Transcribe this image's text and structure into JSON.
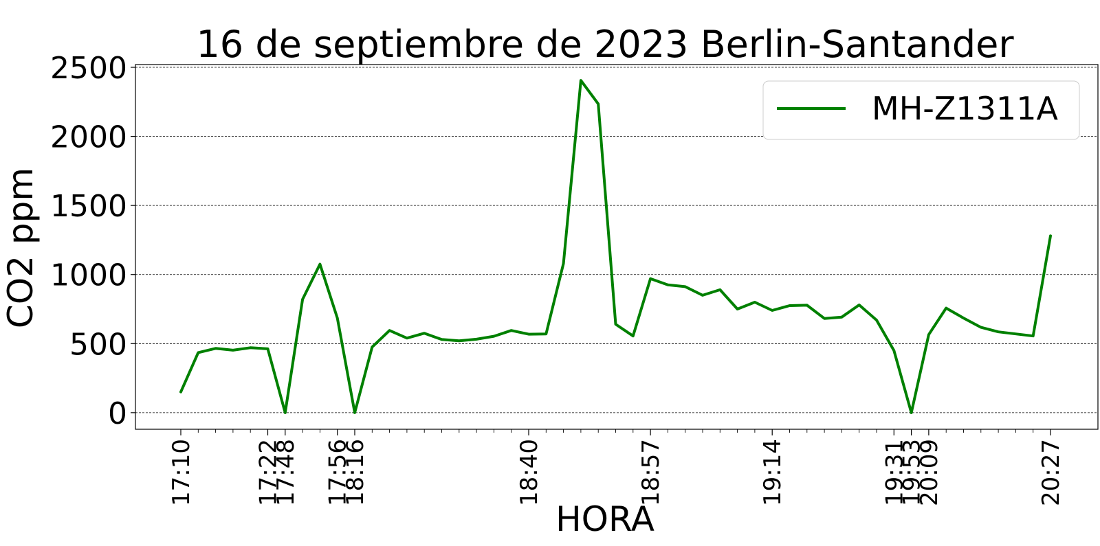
{
  "chart_data": {
    "type": "line",
    "title": "16 de septiembre de 2023 Berlin-Santander",
    "xlabel": "HORA",
    "ylabel": "CO2 ppm",
    "ylim": [
      -120,
      2520
    ],
    "yticks": [
      0,
      500,
      1000,
      1500,
      2000,
      2500
    ],
    "grid": "horizontal dashed",
    "legend_position": "top-right",
    "series": [
      {
        "name": "MH-Z1311A",
        "color": "#008000",
        "values": [
          150,
          435,
          465,
          452,
          470,
          462,
          0,
          820,
          1075,
          685,
          0,
          475,
          595,
          540,
          575,
          530,
          520,
          532,
          553,
          595,
          568,
          570,
          1080,
          2405,
          2235,
          640,
          555,
          970,
          925,
          912,
          850,
          890,
          750,
          800,
          740,
          775,
          778,
          682,
          692,
          780,
          670,
          450,
          0,
          565,
          757,
          685,
          618,
          585,
          570,
          555,
          1280
        ]
      }
    ],
    "xticks_labeled": [
      {
        "index": 0,
        "label": "17:10"
      },
      {
        "index": 5,
        "label": "17:22"
      },
      {
        "index": 6,
        "label": "17:48"
      },
      {
        "index": 9,
        "label": "17:56"
      },
      {
        "index": 10,
        "label": "18:16"
      },
      {
        "index": 20,
        "label": "18:40"
      },
      {
        "index": 27,
        "label": "18:57"
      },
      {
        "index": 34,
        "label": "19:14"
      },
      {
        "index": 41,
        "label": "19:31"
      },
      {
        "index": 42,
        "label": "19:53"
      },
      {
        "index": 43,
        "label": "20:09"
      },
      {
        "index": 50,
        "label": "20:27"
      }
    ]
  }
}
